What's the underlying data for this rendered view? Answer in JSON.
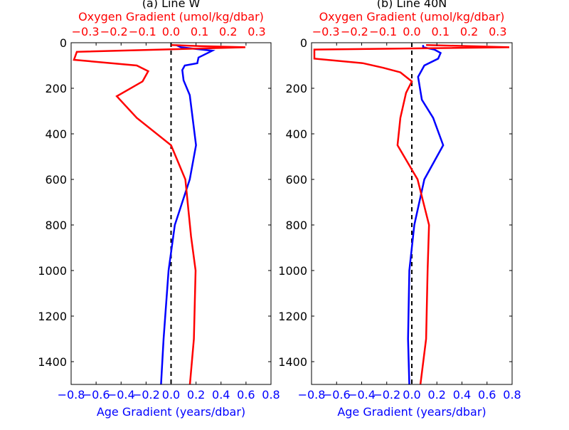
{
  "chart_data": [
    {
      "type": "line",
      "title": "(a) Line W",
      "xlabel": "Age Gradient (years/dbar)",
      "x2label": "Oxygen Gradient (umol/kg/dbar)",
      "ylabel": "",
      "xlim": [
        -0.8,
        0.8
      ],
      "x2lim": [
        -0.35,
        0.35
      ],
      "ylim": [
        0,
        1500
      ],
      "y_inverted": true,
      "x_ticks": [
        "−0.8",
        "−0.6",
        "−0.4",
        "−0.2",
        "0.0",
        "0.2",
        "0.4",
        "0.6",
        "0.8"
      ],
      "x2_ticks": [
        "−0.3",
        "−0.2",
        "−0.1",
        "0.0",
        "0.1",
        "0.2",
        "0.3"
      ],
      "y_ticks": [
        "0",
        "200",
        "400",
        "600",
        "800",
        "1000",
        "1200",
        "1400"
      ],
      "colors": {
        "age": "#0000ff",
        "oxygen": "#ff0000",
        "zero": "#000000"
      },
      "series": [
        {
          "axis": "bottom",
          "color": "#0000ff",
          "points": [
            [
              0.04,
              10
            ],
            [
              0.08,
              20
            ],
            [
              0.16,
              25
            ],
            [
              0.33,
              35
            ],
            [
              0.22,
              65
            ],
            [
              0.21,
              90
            ],
            [
              0.11,
              100
            ],
            [
              0.09,
              120
            ],
            [
              0.1,
              165
            ],
            [
              0.15,
              230
            ],
            [
              0.2,
              450
            ],
            [
              0.15,
              600
            ],
            [
              0.03,
              800
            ],
            [
              -0.02,
              1000
            ],
            [
              -0.06,
              1300
            ],
            [
              -0.08,
              1500
            ]
          ]
        },
        {
          "axis": "top",
          "color": "#ff0000",
          "points": [
            [
              0.0,
              10
            ],
            [
              0.1,
              15
            ],
            [
              0.26,
              20
            ],
            [
              -0.33,
              40
            ],
            [
              -0.34,
              75
            ],
            [
              -0.12,
              100
            ],
            [
              -0.08,
              125
            ],
            [
              -0.1,
              170
            ],
            [
              -0.19,
              235
            ],
            [
              -0.12,
              330
            ],
            [
              0.0,
              450
            ],
            [
              0.05,
              600
            ],
            [
              0.07,
              850
            ],
            [
              0.086,
              1000
            ],
            [
              0.08,
              1300
            ],
            [
              0.066,
              1500
            ]
          ]
        }
      ]
    },
    {
      "type": "line",
      "title": "(b) Line 40N",
      "xlabel": "Age Gradient (years/dbar)",
      "x2label": "Oxygen Gradient (umol/kg/dbar)",
      "ylabel": "",
      "xlim": [
        -0.8,
        0.8
      ],
      "x2lim": [
        -0.35,
        0.35
      ],
      "ylim": [
        0,
        1500
      ],
      "y_inverted": true,
      "x_ticks": [
        "−0.8",
        "−0.6",
        "−0.4",
        "−0.2",
        "0.0",
        "0.2",
        "0.4",
        "0.6",
        "0.8"
      ],
      "x2_ticks": [
        "−0.3",
        "−0.2",
        "−0.1",
        "0.0",
        "0.1",
        "0.2",
        "0.3"
      ],
      "y_ticks": [
        "0",
        "200",
        "400",
        "600",
        "800",
        "1000",
        "1200",
        "1400"
      ],
      "colors": {
        "age": "#0000ff",
        "oxygen": "#ff0000",
        "zero": "#000000"
      },
      "series": [
        {
          "axis": "bottom",
          "color": "#0000ff",
          "points": [
            [
              0.09,
              10
            ],
            [
              0.09,
              20
            ],
            [
              0.18,
              30
            ],
            [
              0.23,
              45
            ],
            [
              0.21,
              70
            ],
            [
              0.1,
              100
            ],
            [
              0.05,
              150
            ],
            [
              0.08,
              250
            ],
            [
              0.17,
              330
            ],
            [
              0.25,
              450
            ],
            [
              0.1,
              600
            ],
            [
              0.02,
              800
            ],
            [
              -0.02,
              1000
            ],
            [
              -0.03,
              1300
            ],
            [
              -0.02,
              1500
            ]
          ]
        },
        {
          "axis": "top",
          "color": "#ff0000",
          "points": [
            [
              0.05,
              10
            ],
            [
              0.34,
              20
            ],
            [
              -0.34,
              30
            ],
            [
              -0.34,
              70
            ],
            [
              -0.17,
              90
            ],
            [
              -0.1,
              110
            ],
            [
              -0.04,
              130
            ],
            [
              0.0,
              170
            ],
            [
              -0.02,
              220
            ],
            [
              -0.04,
              330
            ],
            [
              -0.05,
              450
            ],
            [
              0.02,
              600
            ],
            [
              0.06,
              800
            ],
            [
              0.055,
              1000
            ],
            [
              0.05,
              1300
            ],
            [
              0.03,
              1500
            ]
          ]
        }
      ]
    }
  ]
}
